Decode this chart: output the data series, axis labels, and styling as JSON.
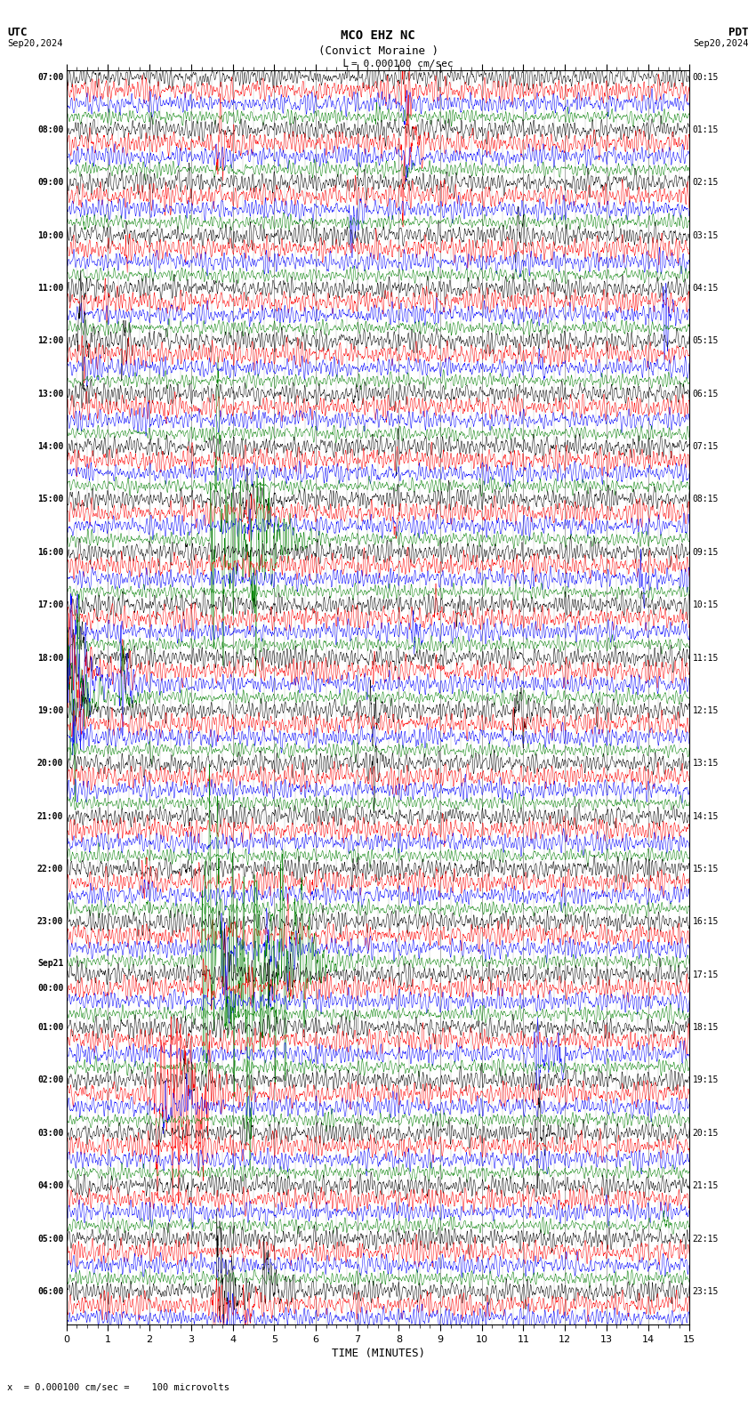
{
  "title_line1": "MCO EHZ NC",
  "title_line2": "(Convict Moraine )",
  "scale_label": "= 0.000100 cm/sec",
  "utc_label": "UTC",
  "pdt_label": "PDT",
  "date_left": "Sep20,2024",
  "date_right": "Sep20,2024",
  "bottom_label": "x  = 0.000100 cm/sec =    100 microvolts",
  "xlabel": "TIME (MINUTES)",
  "xlim": [
    0,
    15
  ],
  "xticks": [
    0,
    1,
    2,
    3,
    4,
    5,
    6,
    7,
    8,
    9,
    10,
    11,
    12,
    13,
    14,
    15
  ],
  "background_color": "#ffffff",
  "trace_colors": [
    "black",
    "red",
    "blue",
    "green"
  ],
  "n_rows": 95,
  "left_times_raw": [
    "07:00",
    "",
    "",
    "",
    "08:00",
    "",
    "",
    "",
    "09:00",
    "",
    "",
    "",
    "10:00",
    "",
    "",
    "",
    "11:00",
    "",
    "",
    "",
    "12:00",
    "",
    "",
    "",
    "13:00",
    "",
    "",
    "",
    "14:00",
    "",
    "",
    "",
    "15:00",
    "",
    "",
    "",
    "16:00",
    "",
    "",
    "",
    "17:00",
    "",
    "",
    "",
    "18:00",
    "",
    "",
    "",
    "19:00",
    "",
    "",
    "",
    "20:00",
    "",
    "",
    "",
    "21:00",
    "",
    "",
    "",
    "22:00",
    "",
    "",
    "",
    "23:00",
    "",
    "",
    "",
    "Sep21",
    "00:00",
    "",
    "",
    "01:00",
    "",
    "",
    "",
    "02:00",
    "",
    "",
    "",
    "03:00",
    "",
    "",
    "",
    "04:00",
    "",
    "",
    "",
    "05:00",
    "",
    "",
    "",
    "06:00",
    "",
    ""
  ],
  "right_times_raw": [
    "00:15",
    "",
    "",
    "",
    "01:15",
    "",
    "",
    "",
    "02:15",
    "",
    "",
    "",
    "03:15",
    "",
    "",
    "",
    "04:15",
    "",
    "",
    "",
    "05:15",
    "",
    "",
    "",
    "06:15",
    "",
    "",
    "",
    "07:15",
    "",
    "",
    "",
    "08:15",
    "",
    "",
    "",
    "09:15",
    "",
    "",
    "",
    "10:15",
    "",
    "",
    "",
    "11:15",
    "",
    "",
    "",
    "12:15",
    "",
    "",
    "",
    "13:15",
    "",
    "",
    "",
    "14:15",
    "",
    "",
    "",
    "15:15",
    "",
    "",
    "",
    "16:15",
    "",
    "",
    "",
    "17:15",
    "",
    "",
    "",
    "18:15",
    "",
    "",
    "",
    "19:15",
    "",
    "",
    "",
    "20:15",
    "",
    "",
    "",
    "21:15",
    "",
    "",
    "",
    "22:15",
    "",
    "",
    "",
    "23:15",
    "",
    ""
  ]
}
